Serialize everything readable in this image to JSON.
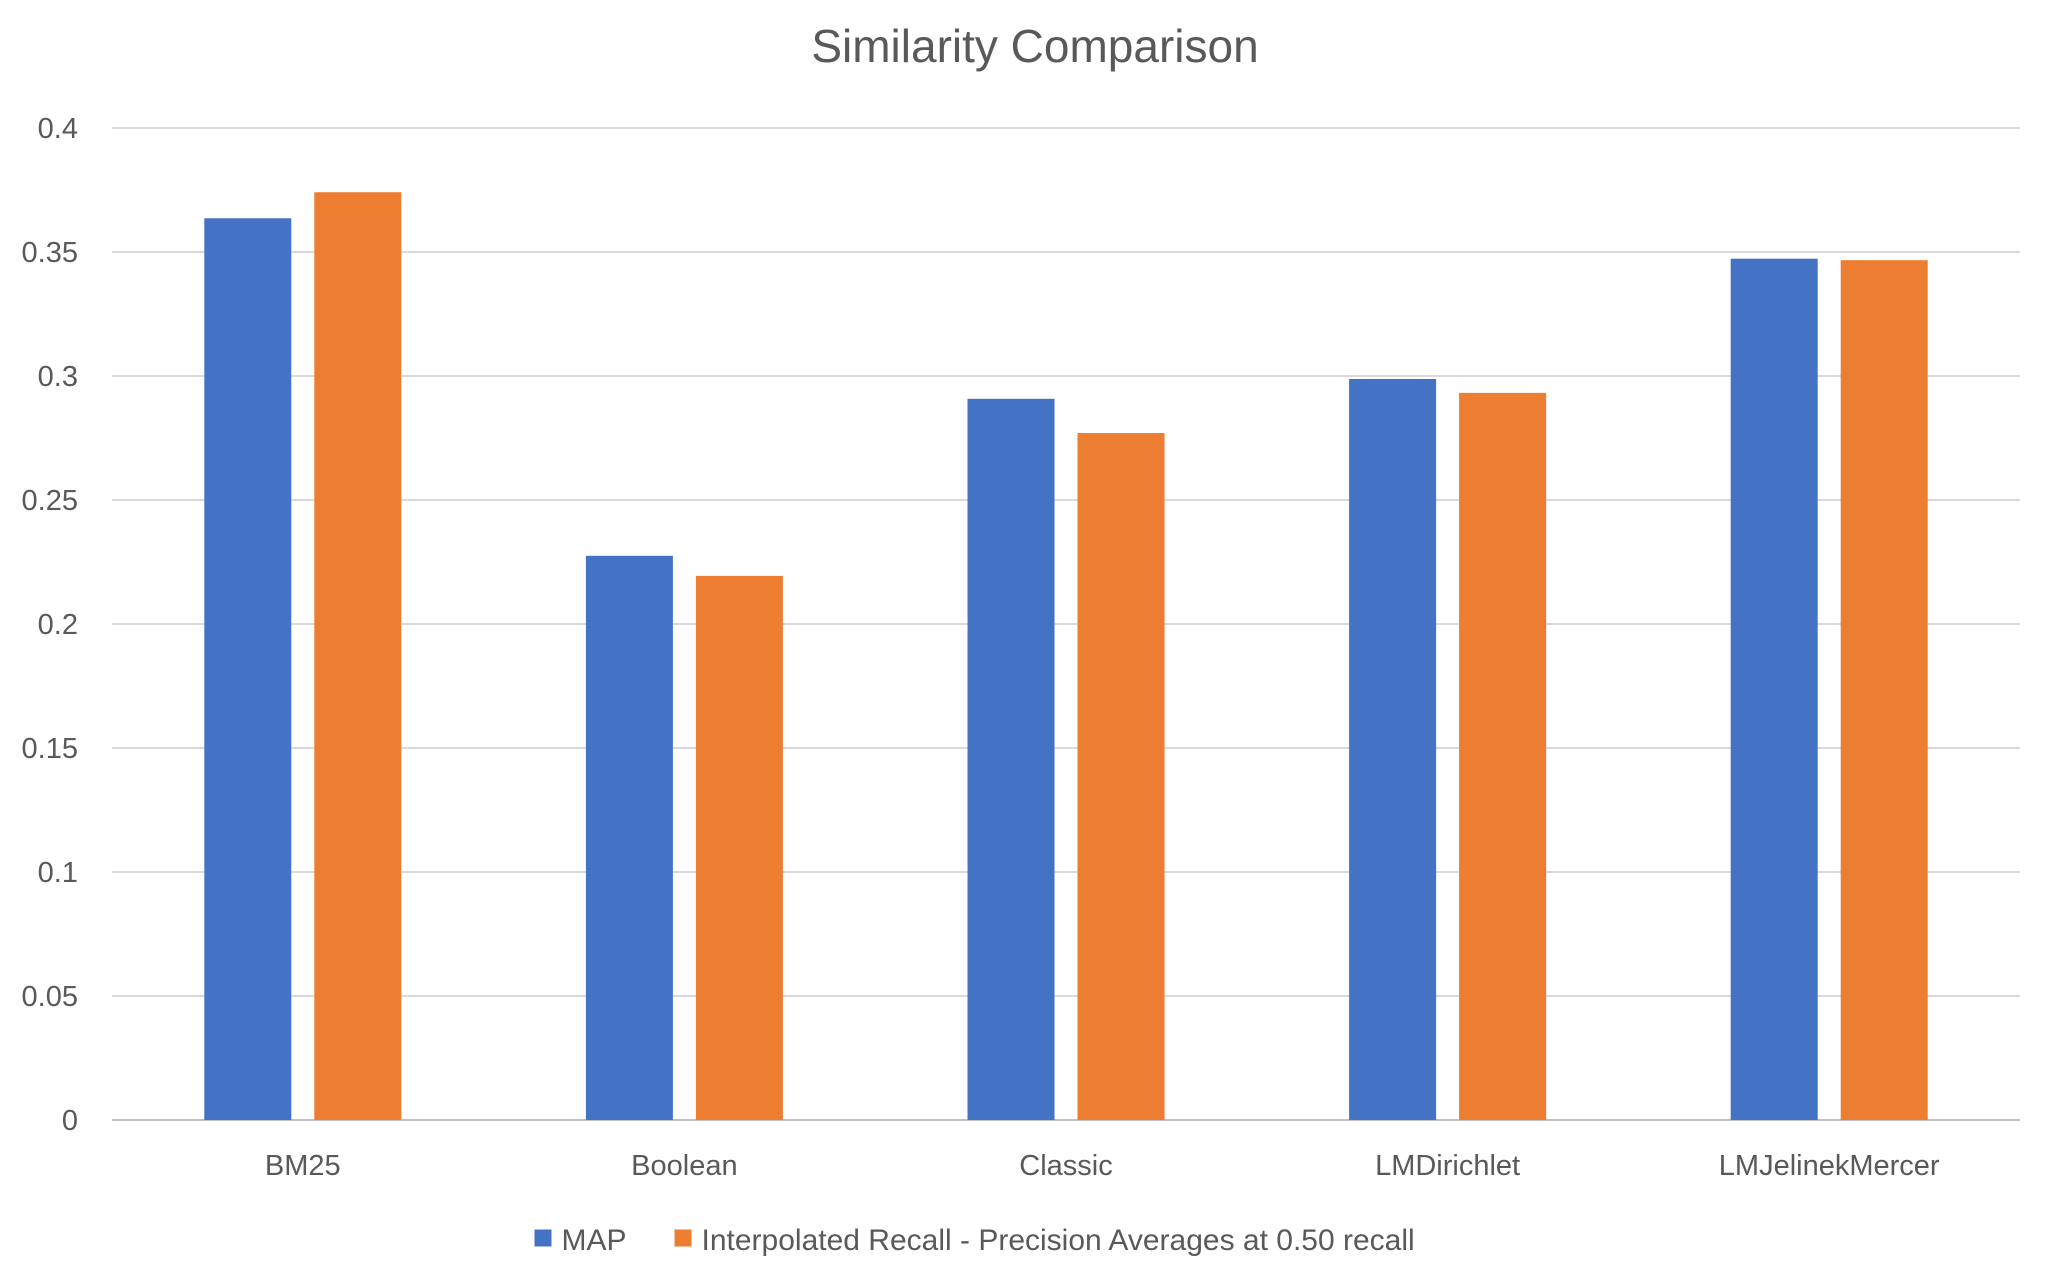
{
  "chart_data": {
    "type": "bar",
    "title": "Similarity Comparison",
    "categories": [
      "BM25",
      "Boolean",
      "Classic",
      "LMDirichlet",
      "LMJelinekMercer"
    ],
    "series": [
      {
        "name": "MAP",
        "color": "#4472c4",
        "values": [
          0.3636,
          0.2275,
          0.2908,
          0.2988,
          0.3473
        ]
      },
      {
        "name": "Interpolated Recall - Precision Averages at 0.50 recall",
        "color": "#ed7d31",
        "values": [
          0.3741,
          0.2194,
          0.277,
          0.2932,
          0.3467
        ]
      }
    ],
    "ylim": [
      0,
      0.4
    ],
    "yticks": [
      {
        "value": 0,
        "label": "0"
      },
      {
        "value": 0.05,
        "label": "0.05"
      },
      {
        "value": 0.1,
        "label": "0.1"
      },
      {
        "value": 0.15,
        "label": "0.15"
      },
      {
        "value": 0.2,
        "label": "0.2"
      },
      {
        "value": 0.25,
        "label": "0.25"
      },
      {
        "value": 0.3,
        "label": "0.3"
      },
      {
        "value": 0.35,
        "label": "0.35"
      },
      {
        "value": 0.4,
        "label": "0.4"
      }
    ],
    "grid": true,
    "legend": "bottom"
  }
}
